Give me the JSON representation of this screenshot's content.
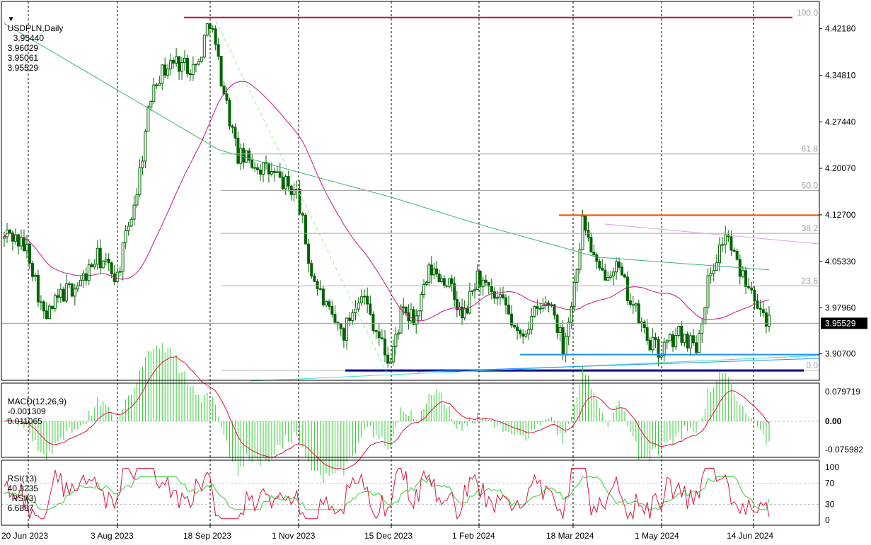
{
  "header": {
    "symbol": "USDPLN,Daily",
    "open": "3.95440",
    "high": "3.96029",
    "low": "3.95061",
    "close": "3.95529"
  },
  "macd_header": {
    "label": "MACD(12,26,9)",
    "main": "-0.001309",
    "signal": "0.011065"
  },
  "rsi_header": {
    "label": "RSI(13)",
    "rsi13": "40.3235",
    "rsi3_label": "RSI(3)",
    "rsi3": "6.6887"
  },
  "colors": {
    "candle": "#006400",
    "ma_green": "#3cb371",
    "ma_magenta": "#c71585",
    "macd_hist": "#32cd32",
    "macd_signal": "#dc143c",
    "rsi13": "#32cd32",
    "rsi3": "#dc143c",
    "fib_top": "#c8003c",
    "resistance": "#ff4500",
    "support_light": "#1e90ff",
    "support_dark": "#00008b",
    "diag_trend": "#dda0dd",
    "dash_trend": "#90ee90",
    "ascending": "#40e0d0"
  },
  "price_axis": {
    "ticks": [
      "4.42180",
      "4.34810",
      "4.27440",
      "4.20070",
      "4.12700",
      "4.05330",
      "3.97960",
      "3.90700"
    ],
    "current": "3.95529"
  },
  "macd_axis": {
    "ticks": [
      "0.079719",
      "0.00",
      "-0.075982"
    ]
  },
  "rsi_axis": {
    "ticks": [
      "100",
      "70",
      "30",
      "0"
    ]
  },
  "time_axis": {
    "labels": [
      "20 Jun 2023",
      "3 Aug 2023",
      "18 Sep 2023",
      "1 Nov 2023",
      "15 Dec 2023",
      "1 Feb 2024",
      "18 Mar 2024",
      "1 May 2024",
      "14 Jun 2024"
    ]
  },
  "fib_levels": [
    {
      "label": "100.0",
      "price": 4.4395
    },
    {
      "label": "61.8",
      "price": 4.2235
    },
    {
      "label": "50.0",
      "price": 4.1655
    },
    {
      "label": "38.2",
      "price": 4.0977
    },
    {
      "label": "23.6",
      "price": 4.0145
    },
    {
      "label": "0.0",
      "price": 3.8806
    }
  ],
  "chart_data": [
    {
      "type": "candlestick",
      "title": "USDPLN,Daily",
      "ylim": [
        3.865,
        4.465
      ],
      "ohlc_last": {
        "open": 3.9544,
        "high": 3.96029,
        "low": 3.95061,
        "close": 3.95529
      },
      "key_points": [
        {
          "date": "20 Jun 2023",
          "price": 4.07
        },
        {
          "date": "3 Aug 2023",
          "price": 4.03
        },
        {
          "date": "18 Sep 2023",
          "price": 4.44
        },
        {
          "date": "1 Nov 2023",
          "price": 4.16
        },
        {
          "date": "15 Dec 2023",
          "price": 3.89
        },
        {
          "date": "1 Feb 2024",
          "price": 4.03
        },
        {
          "date": "18 Mar 2024",
          "price": 4.12
        },
        {
          "date": "1 May 2024",
          "price": 3.91
        },
        {
          "date": "14 Jun 2024",
          "price": 4.09
        },
        {
          "date": "last",
          "price": 3.95529
        }
      ],
      "horizontal_levels": [
        4.4395,
        4.1265,
        3.9057,
        3.8806
      ]
    },
    {
      "type": "bar",
      "title": "MACD(12,26,9)",
      "ylim": [
        -0.075982,
        0.079719
      ],
      "last_values": {
        "main": -0.001309,
        "signal": 0.011065
      }
    },
    {
      "type": "line",
      "title": "RSI(13) / RSI(3)",
      "ylim": [
        0,
        100
      ],
      "levels": [
        70,
        30
      ],
      "last_values": {
        "rsi13": 40.3235,
        "rsi3": 6.6887
      }
    }
  ]
}
